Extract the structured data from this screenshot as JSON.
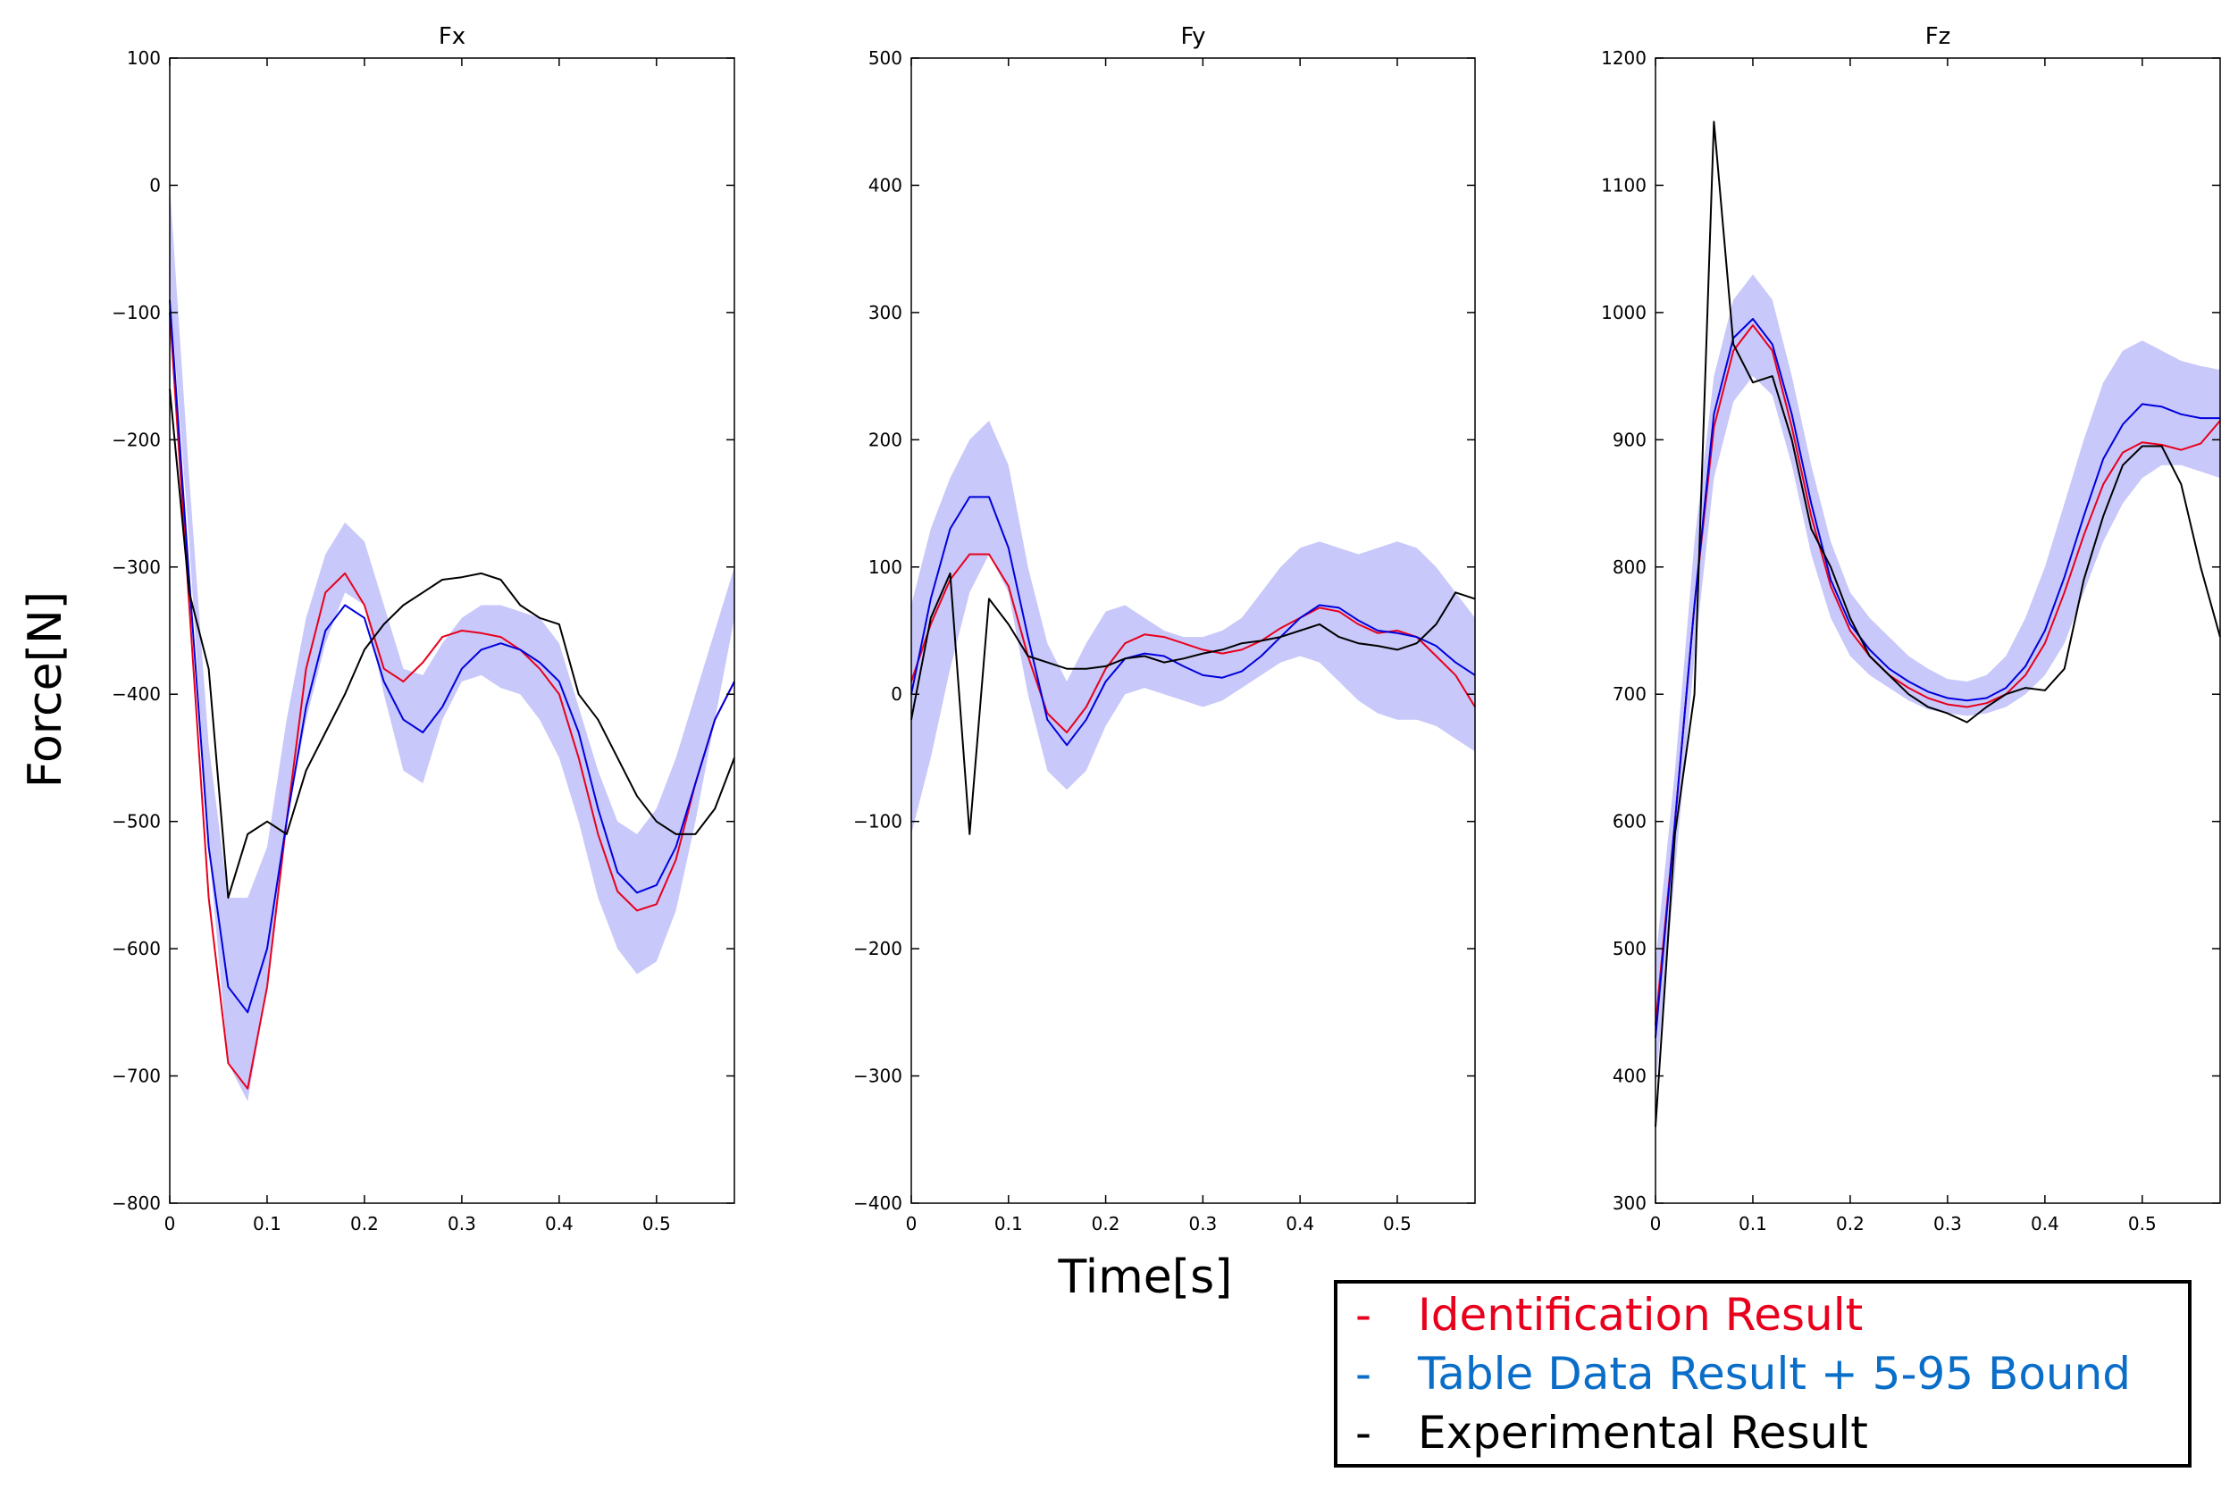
{
  "chart_data": [
    {
      "type": "line",
      "title": "Fx",
      "xlabel": "Time[s]",
      "ylabel": "Force[N]",
      "xlim": [
        0,
        0.58
      ],
      "ylim": [
        -800,
        100
      ],
      "xticks": [
        0,
        0.1,
        0.2,
        0.3,
        0.4,
        0.5
      ],
      "xtick_labels": [
        "0",
        "0.1",
        "0.2",
        "0.3",
        "0.4",
        "0.5"
      ],
      "yticks": [
        -800,
        -700,
        -600,
        -500,
        -400,
        -300,
        -200,
        -100,
        0,
        100
      ],
      "ytick_labels": [
        "−800",
        "−700",
        "−600",
        "−500",
        "−400",
        "−300",
        "−200",
        "−100",
        "0",
        "100"
      ],
      "grid": false,
      "x": [
        0,
        0.02,
        0.04,
        0.06,
        0.08,
        0.1,
        0.12,
        0.14,
        0.16,
        0.18,
        0.2,
        0.22,
        0.24,
        0.26,
        0.28,
        0.3,
        0.32,
        0.34,
        0.36,
        0.38,
        0.4,
        0.42,
        0.44,
        0.46,
        0.48,
        0.5,
        0.52,
        0.54,
        0.56,
        0.58
      ],
      "band": {
        "name": "5-95 Bound",
        "lower": [
          -80,
          -280,
          -520,
          -690,
          -720,
          -630,
          -500,
          -420,
          -360,
          -320,
          -330,
          -400,
          -460,
          -470,
          -420,
          -390,
          -385,
          -395,
          -400,
          -420,
          -450,
          -500,
          -560,
          -600,
          -620,
          -610,
          -570,
          -500,
          -420,
          -340
        ],
        "upper": [
          0,
          -230,
          -440,
          -560,
          -560,
          -520,
          -420,
          -340,
          -290,
          -265,
          -280,
          -330,
          -380,
          -385,
          -360,
          -340,
          -330,
          -330,
          -335,
          -340,
          -360,
          -410,
          -460,
          -500,
          -510,
          -490,
          -450,
          -400,
          -350,
          -300
        ]
      },
      "series": [
        {
          "name": "Identification Result",
          "color": "#e8001c",
          "values": [
            -100,
            -330,
            -560,
            -690,
            -710,
            -630,
            -500,
            -380,
            -320,
            -305,
            -330,
            -380,
            -390,
            -375,
            -355,
            -350,
            -352,
            -355,
            -365,
            -380,
            -400,
            -450,
            -510,
            -555,
            -570,
            -565,
            -530,
            -470,
            -420,
            -390
          ]
        },
        {
          "name": "Table Data Result",
          "color": "#0000dd",
          "values": [
            -90,
            -310,
            -520,
            -630,
            -650,
            -600,
            -500,
            -410,
            -350,
            -330,
            -340,
            -390,
            -420,
            -430,
            -410,
            -380,
            -365,
            -360,
            -365,
            -375,
            -390,
            -430,
            -490,
            -540,
            -556,
            -550,
            -520,
            -470,
            -420,
            -390
          ]
        },
        {
          "name": "Experimental Result",
          "color": "#000000",
          "values": [
            -160,
            -320,
            -380,
            -560,
            -510,
            -500,
            -510,
            -460,
            -430,
            -400,
            -365,
            -345,
            -330,
            -320,
            -310,
            -308,
            -305,
            -310,
            -330,
            -340,
            -345,
            -400,
            -420,
            -450,
            -480,
            -500,
            -510,
            -510,
            -490,
            -450
          ]
        }
      ]
    },
    {
      "type": "line",
      "title": "Fy",
      "xlabel": "Time[s]",
      "ylabel": "Force[N]",
      "xlim": [
        0,
        0.58
      ],
      "ylim": [
        -400,
        500
      ],
      "xticks": [
        0,
        0.1,
        0.2,
        0.3,
        0.4,
        0.5
      ],
      "xtick_labels": [
        "0",
        "0.1",
        "0.2",
        "0.3",
        "0.4",
        "0.5"
      ],
      "yticks": [
        -400,
        -300,
        -200,
        -100,
        0,
        100,
        200,
        300,
        400,
        500
      ],
      "ytick_labels": [
        "−400",
        "−300",
        "−200",
        "−100",
        "0",
        "100",
        "200",
        "300",
        "400",
        "500"
      ],
      "grid": false,
      "x": [
        0,
        0.02,
        0.04,
        0.06,
        0.08,
        0.1,
        0.12,
        0.14,
        0.16,
        0.18,
        0.2,
        0.22,
        0.24,
        0.26,
        0.28,
        0.3,
        0.32,
        0.34,
        0.36,
        0.38,
        0.4,
        0.42,
        0.44,
        0.46,
        0.48,
        0.5,
        0.52,
        0.54,
        0.56,
        0.58
      ],
      "band": {
        "name": "5-95 Bound",
        "lower": [
          -110,
          -50,
          20,
          80,
          110,
          80,
          0,
          -60,
          -75,
          -60,
          -25,
          0,
          5,
          0,
          -5,
          -10,
          -5,
          5,
          15,
          25,
          30,
          25,
          10,
          -5,
          -15,
          -20,
          -20,
          -25,
          -35,
          -45
        ],
        "upper": [
          70,
          130,
          170,
          200,
          215,
          180,
          100,
          40,
          10,
          40,
          65,
          70,
          60,
          50,
          45,
          45,
          50,
          60,
          80,
          100,
          115,
          120,
          115,
          110,
          115,
          120,
          115,
          100,
          80,
          60
        ]
      },
      "series": [
        {
          "name": "Identification Result",
          "color": "#e8001c",
          "values": [
            10,
            55,
            90,
            110,
            110,
            85,
            30,
            -15,
            -30,
            -10,
            20,
            40,
            47,
            45,
            40,
            35,
            32,
            35,
            42,
            52,
            60,
            68,
            65,
            55,
            48,
            50,
            45,
            30,
            15,
            -10
          ]
        },
        {
          "name": "Table Data Result",
          "color": "#0000dd",
          "values": [
            0,
            75,
            130,
            155,
            155,
            115,
            45,
            -20,
            -40,
            -20,
            10,
            28,
            32,
            30,
            22,
            15,
            13,
            18,
            30,
            45,
            60,
            70,
            68,
            58,
            50,
            48,
            45,
            38,
            25,
            15
          ]
        },
        {
          "name": "Experimental Result",
          "color": "#000000",
          "values": [
            -20,
            60,
            95,
            -110,
            75,
            55,
            30,
            25,
            20,
            20,
            22,
            28,
            30,
            25,
            28,
            32,
            35,
            40,
            42,
            45,
            50,
            55,
            45,
            40,
            38,
            35,
            40,
            55,
            80,
            75
          ]
        }
      ]
    },
    {
      "type": "line",
      "title": "Fz",
      "xlabel": "Time[s]",
      "ylabel": "Force[N]",
      "xlim": [
        0,
        0.58
      ],
      "ylim": [
        300,
        1200
      ],
      "xticks": [
        0,
        0.1,
        0.2,
        0.3,
        0.4,
        0.5
      ],
      "xtick_labels": [
        "0",
        "0.1",
        "0.2",
        "0.3",
        "0.4",
        "0.5"
      ],
      "yticks": [
        300,
        400,
        500,
        600,
        700,
        800,
        900,
        1000,
        1100,
        1200
      ],
      "ytick_labels": [
        "300",
        "400",
        "500",
        "600",
        "700",
        "800",
        "900",
        "1000",
        "1100",
        "1200"
      ],
      "grid": false,
      "x": [
        0,
        0.02,
        0.04,
        0.06,
        0.08,
        0.1,
        0.12,
        0.14,
        0.16,
        0.18,
        0.2,
        0.22,
        0.24,
        0.26,
        0.28,
        0.3,
        0.32,
        0.34,
        0.36,
        0.38,
        0.4,
        0.42,
        0.44,
        0.46,
        0.48,
        0.5,
        0.52,
        0.54,
        0.56,
        0.58
      ],
      "band": {
        "name": "5-95 Bound",
        "lower": [
          390,
          560,
          730,
          870,
          930,
          950,
          935,
          880,
          810,
          760,
          730,
          715,
          705,
          695,
          688,
          685,
          683,
          685,
          690,
          700,
          715,
          740,
          780,
          820,
          850,
          870,
          880,
          880,
          875,
          870
        ],
        "upper": [
          490,
          640,
          820,
          950,
          1010,
          1030,
          1010,
          950,
          880,
          820,
          780,
          760,
          745,
          730,
          720,
          712,
          710,
          715,
          730,
          760,
          800,
          850,
          900,
          945,
          970,
          978,
          970,
          962,
          958,
          955
        ]
      },
      "series": [
        {
          "name": "Identification Result",
          "color": "#e8001c",
          "values": [
            440,
            600,
            770,
            910,
            970,
            990,
            970,
            910,
            840,
            785,
            750,
            730,
            715,
            705,
            697,
            692,
            690,
            693,
            700,
            715,
            740,
            780,
            825,
            865,
            890,
            898,
            896,
            892,
            897,
            915
          ]
        },
        {
          "name": "Table Data Result",
          "color": "#0000dd",
          "values": [
            430,
            600,
            770,
            920,
            980,
            995,
            975,
            920,
            850,
            790,
            755,
            735,
            720,
            710,
            702,
            697,
            695,
            697,
            705,
            722,
            750,
            792,
            840,
            885,
            912,
            928,
            926,
            920,
            917,
            917
          ]
        },
        {
          "name": "Experimental Result",
          "color": "#000000",
          "values": [
            360,
            590,
            700,
            1150,
            975,
            945,
            950,
            900,
            830,
            800,
            760,
            730,
            715,
            700,
            690,
            685,
            678,
            690,
            700,
            705,
            703,
            720,
            790,
            840,
            880,
            895,
            895,
            865,
            800,
            745
          ]
        }
      ]
    }
  ],
  "figure": {
    "shared_xlabel": "Time[s]",
    "shared_ylabel": "Force[N]",
    "band_color": "#c8c8fa"
  },
  "legend": {
    "items": [
      {
        "dash": "-",
        "label": "Identification Result",
        "color": "#e8001c"
      },
      {
        "dash": "-",
        "label": "Table Data Result + 5-95 Bound",
        "color": "#0a6ec8"
      },
      {
        "dash": "-",
        "label": "Experimental Result",
        "color": "#000000"
      }
    ]
  }
}
